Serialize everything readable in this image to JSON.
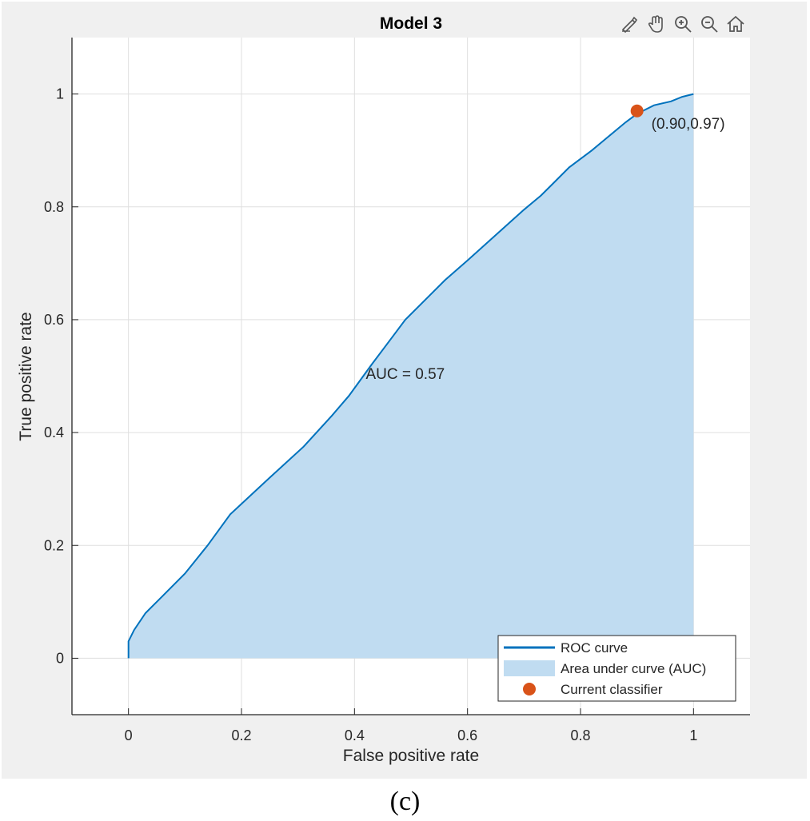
{
  "chart_data": {
    "type": "line",
    "title": "Model 3",
    "xlabel": "False positive rate",
    "ylabel": "True positive rate",
    "xlim": [
      -0.1,
      1.1
    ],
    "ylim": [
      -0.1,
      1.1
    ],
    "xticks": [
      0,
      0.2,
      0.4,
      0.6,
      0.8,
      1
    ],
    "xtick_labels": [
      "0",
      "0.2",
      "0.4",
      "0.6",
      "0.8",
      "1"
    ],
    "yticks": [
      0,
      0.2,
      0.4,
      0.6,
      0.8,
      1
    ],
    "ytick_labels": [
      "0",
      "0.2",
      "0.4",
      "0.6",
      "0.8",
      "1"
    ],
    "grid": true,
    "series": [
      {
        "name": "ROC curve",
        "color": "#0072bd",
        "x": [
          0,
          0,
          0.01,
          0.03,
          0.06,
          0.1,
          0.14,
          0.18,
          0.25,
          0.31,
          0.36,
          0.39,
          0.43,
          0.46,
          0.49,
          0.53,
          0.56,
          0.6,
          0.65,
          0.7,
          0.73,
          0.75,
          0.78,
          0.82,
          0.85,
          0.88,
          0.9,
          0.93,
          0.96,
          0.98,
          1
        ],
        "y": [
          0,
          0.03,
          0.05,
          0.08,
          0.11,
          0.15,
          0.2,
          0.255,
          0.32,
          0.375,
          0.43,
          0.465,
          0.52,
          0.56,
          0.6,
          0.64,
          0.67,
          0.705,
          0.75,
          0.795,
          0.82,
          0.84,
          0.87,
          0.9,
          0.925,
          0.95,
          0.965,
          0.98,
          0.987,
          0.995,
          1.0
        ]
      }
    ],
    "area": {
      "name": "Area under curve (AUC)",
      "color": "#c0dcf1"
    },
    "current_classifier": {
      "name": "Current classifier",
      "x": 0.9,
      "y": 0.97,
      "color": "#d95319",
      "label": "(0.90,0.97)"
    },
    "annotations": [
      {
        "text": "AUC = 0.57",
        "x": 0.42,
        "y": 0.495
      }
    ],
    "legend": {
      "location": "bottom-right",
      "entries": [
        "ROC curve",
        "Area under curve (AUC)",
        "Current classifier"
      ]
    }
  },
  "toolbar": {
    "icons": [
      "brush-icon",
      "pan-hand-icon",
      "zoom-in-icon",
      "zoom-out-icon",
      "home-icon"
    ]
  },
  "caption": "(c)"
}
